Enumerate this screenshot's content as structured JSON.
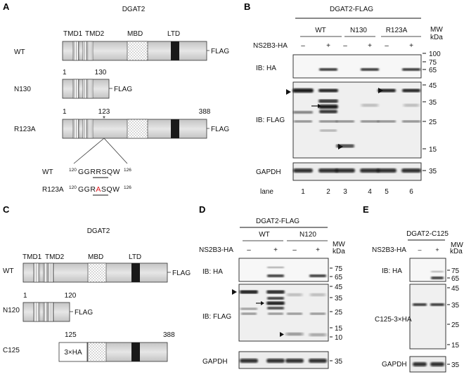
{
  "panels": {
    "A": {
      "letter": "A",
      "title": "DGAT2",
      "domain_labels": [
        "TMD1",
        "TMD2",
        "MBD",
        "LTD"
      ],
      "constructs": [
        {
          "name": "WT",
          "tag": "FLAG"
        },
        {
          "name": "N130",
          "tag": "FLAG",
          "start": "1",
          "end": "130"
        },
        {
          "name": "R123A",
          "tag": "FLAG",
          "start": "1",
          "mutation_pos": "123",
          "mutation_mark": "*",
          "end": "388"
        }
      ],
      "seq_rows": [
        {
          "label": "WT",
          "start_num": "120",
          "pre": "GGRR",
          "mut": "",
          "post": "SQW",
          "end_num": "126"
        },
        {
          "label": "R123A",
          "start_num": "120",
          "pre": "GGR",
          "mut": "A",
          "post": "SQW",
          "end_num": "126"
        }
      ],
      "mutation_color": "#e0161c"
    },
    "B": {
      "letter": "B",
      "title": "DGAT2-FLAG",
      "groups": [
        "WT",
        "N130",
        "R123A"
      ],
      "treatment_label": "NS2B3-HA",
      "treatment_signs": [
        "–",
        "+",
        "–",
        "+",
        "–",
        "+"
      ],
      "mw_header": [
        "MW",
        "kDa"
      ],
      "blots": [
        {
          "label": "IB: HA",
          "markers": [
            "100",
            "75",
            "65"
          ]
        },
        {
          "label": "IB: FLAG",
          "markers": [
            "45",
            "35",
            "25",
            "15"
          ]
        },
        {
          "label": "GAPDH",
          "markers": [
            "35"
          ]
        }
      ],
      "lane_label": "lane",
      "lanes": [
        "1",
        "2",
        "3",
        "4",
        "5",
        "6"
      ]
    },
    "C": {
      "letter": "C",
      "title": "DGAT2",
      "domain_labels": [
        "TMD1",
        "TMD2",
        "MBD",
        "LTD"
      ],
      "constructs": [
        {
          "name": "WT",
          "tag": "FLAG"
        },
        {
          "name": "N120",
          "tag": "FLAG",
          "start": "1",
          "end": "120"
        },
        {
          "name": "C125",
          "tag": "3×HA",
          "start": "125",
          "end": "388"
        }
      ]
    },
    "D": {
      "letter": "D",
      "title": "DGAT2-FLAG",
      "groups": [
        "WT",
        "N120"
      ],
      "treatment_label": "NS2B3-HA",
      "treatment_signs": [
        "–",
        "+",
        "–",
        "+"
      ],
      "mw_header": [
        "MW",
        "kDa"
      ],
      "blots": [
        {
          "label": "IB: HA",
          "markers": [
            "75",
            "65"
          ]
        },
        {
          "label": "IB: FLAG",
          "markers": [
            "45",
            "35",
            "25",
            "15",
            "10"
          ]
        },
        {
          "label": "GAPDH",
          "markers": [
            "35"
          ]
        }
      ]
    },
    "E": {
      "letter": "E",
      "title": "DGAT2-C125",
      "treatment_label": "NS2B3-HA",
      "treatment_signs": [
        "–",
        "+"
      ],
      "mw_header": [
        "MW",
        "kDa"
      ],
      "blots": [
        {
          "label": "IB: HA",
          "markers": [
            "75",
            "65"
          ]
        },
        {
          "label": "C125-3×HA",
          "markers": [
            "45",
            "35",
            "25",
            "15"
          ]
        },
        {
          "label": "GAPDH",
          "markers": [
            "35"
          ]
        }
      ]
    }
  }
}
